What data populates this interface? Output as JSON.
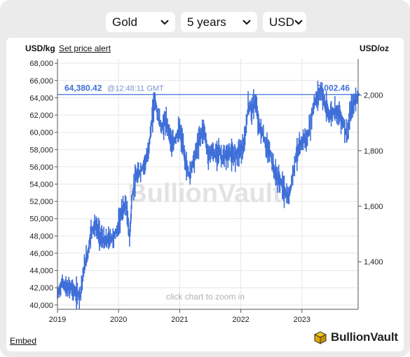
{
  "controls": {
    "metal": "Gold",
    "period": "5 years",
    "currency": "USD"
  },
  "units": {
    "left": "USD/kg",
    "right": "USD/oz"
  },
  "links": {
    "set_price_alert": "Set price alert",
    "embed": "Embed"
  },
  "brand": {
    "name": "BullionVault"
  },
  "chart_data": {
    "type": "line",
    "title": "",
    "xlabel": "",
    "ylabel_left": "USD/kg",
    "ylabel_right": "USD/oz",
    "watermark": "BullionVault",
    "hint": "click chart to zoom in",
    "current_price_kg": "64,380.42",
    "current_time": "@12:48:11 GMT",
    "current_price_oz": "2,002.46",
    "current_value_kg": 64380.42,
    "ylim_left": [
      39500,
      68500
    ],
    "ylim_right_ticks": [
      1400,
      1600,
      1800,
      2000
    ],
    "yticks_left": [
      40000,
      42000,
      44000,
      46000,
      48000,
      50000,
      52000,
      54000,
      56000,
      58000,
      60000,
      62000,
      64000,
      66000,
      68000
    ],
    "ytick_labels_left": [
      "40,000",
      "42,000",
      "44,000",
      "46,000",
      "48,000",
      "50,000",
      "52,000",
      "54,000",
      "56,000",
      "58,000",
      "60,000",
      "62,000",
      "64,000",
      "66,000",
      "68,000"
    ],
    "ytick_labels_right": [
      "1,400",
      "1,600",
      "1,800",
      "2,000"
    ],
    "xticks": [
      "2019",
      "2020",
      "2021",
      "2022",
      "2023"
    ],
    "xlim": [
      2019.0,
      2023.92
    ],
    "grid": true,
    "series": [
      {
        "color": "#3f6fd8",
        "points": [
          [
            2019.0,
            41200
          ],
          [
            2019.08,
            42600
          ],
          [
            2019.15,
            41900
          ],
          [
            2019.22,
            42100
          ],
          [
            2019.3,
            41300
          ],
          [
            2019.37,
            41200
          ],
          [
            2019.44,
            44400
          ],
          [
            2019.5,
            46100
          ],
          [
            2019.55,
            48600
          ],
          [
            2019.62,
            49200
          ],
          [
            2019.7,
            48000
          ],
          [
            2019.77,
            47300
          ],
          [
            2019.85,
            47700
          ],
          [
            2019.92,
            47800
          ],
          [
            2020.0,
            49200
          ],
          [
            2020.05,
            50800
          ],
          [
            2020.12,
            51700
          ],
          [
            2020.18,
            47700
          ],
          [
            2020.22,
            52500
          ],
          [
            2020.28,
            54700
          ],
          [
            2020.35,
            55400
          ],
          [
            2020.42,
            56300
          ],
          [
            2020.48,
            57400
          ],
          [
            2020.54,
            61000
          ],
          [
            2020.59,
            64000
          ],
          [
            2020.64,
            62000
          ],
          [
            2020.7,
            60500
          ],
          [
            2020.76,
            61300
          ],
          [
            2020.82,
            60300
          ],
          [
            2020.88,
            58300
          ],
          [
            2020.94,
            59500
          ],
          [
            2021.0,
            60200
          ],
          [
            2021.05,
            58600
          ],
          [
            2021.1,
            56300
          ],
          [
            2021.16,
            55000
          ],
          [
            2021.22,
            56700
          ],
          [
            2021.28,
            58100
          ],
          [
            2021.34,
            59700
          ],
          [
            2021.4,
            60400
          ],
          [
            2021.46,
            57400
          ],
          [
            2021.52,
            57900
          ],
          [
            2021.58,
            57300
          ],
          [
            2021.64,
            58000
          ],
          [
            2021.7,
            56900
          ],
          [
            2021.76,
            57300
          ],
          [
            2021.82,
            57700
          ],
          [
            2021.88,
            57100
          ],
          [
            2021.94,
            57700
          ],
          [
            2022.0,
            58000
          ],
          [
            2022.06,
            58600
          ],
          [
            2022.12,
            63000
          ],
          [
            2022.18,
            62700
          ],
          [
            2022.24,
            63600
          ],
          [
            2022.3,
            60600
          ],
          [
            2022.36,
            59800
          ],
          [
            2022.42,
            58200
          ],
          [
            2022.48,
            57700
          ],
          [
            2022.54,
            55600
          ],
          [
            2022.6,
            54700
          ],
          [
            2022.66,
            54200
          ],
          [
            2022.72,
            53100
          ],
          [
            2022.78,
            52300
          ],
          [
            2022.84,
            54600
          ],
          [
            2022.9,
            57300
          ],
          [
            2022.96,
            58100
          ],
          [
            2023.02,
            59300
          ],
          [
            2023.08,
            59000
          ],
          [
            2023.14,
            61000
          ],
          [
            2023.2,
            63400
          ],
          [
            2023.26,
            64100
          ],
          [
            2023.32,
            65000
          ],
          [
            2023.38,
            63000
          ],
          [
            2023.44,
            62000
          ],
          [
            2023.5,
            62300
          ],
          [
            2023.56,
            62600
          ],
          [
            2023.62,
            62000
          ],
          [
            2023.68,
            61000
          ],
          [
            2023.74,
            59500
          ],
          [
            2023.8,
            62500
          ],
          [
            2023.86,
            63500
          ],
          [
            2023.92,
            64380
          ]
        ]
      }
    ]
  }
}
